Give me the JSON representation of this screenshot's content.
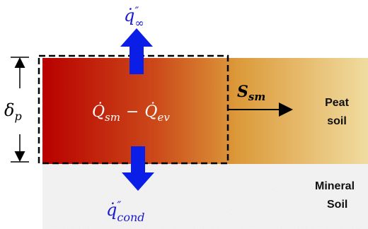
{
  "labels": {
    "flux_top": {
      "base": "q̇",
      "sup": "″",
      "sub": "∞"
    },
    "source": {
      "a": "Q̇",
      "a_sub": "sm",
      "op": "−",
      "b": "Q̇",
      "b_sub": "ev"
    },
    "speed": {
      "base": "S",
      "sub": "sm"
    },
    "thickness": {
      "base": "δ",
      "sub": "p"
    },
    "flux_bottom": {
      "base": "q̇",
      "sup": "″",
      "sub": "cond"
    },
    "peat": [
      "Peat",
      "soil"
    ],
    "mineral": [
      "Mineral",
      "Soil"
    ]
  }
}
